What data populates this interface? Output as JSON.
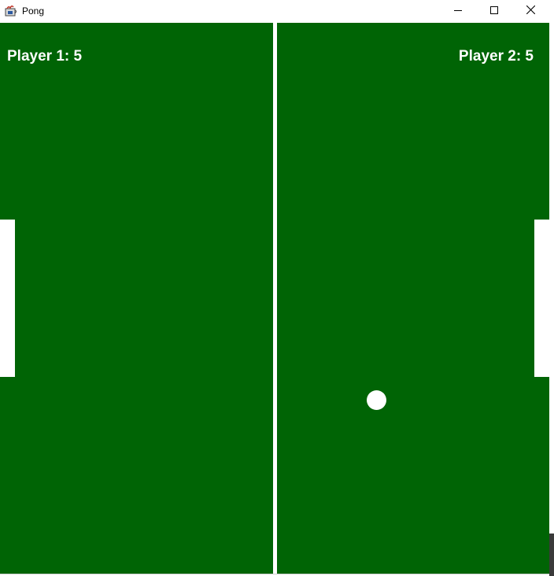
{
  "window": {
    "title": "Pong",
    "app_icon": "java-cup-icon",
    "controls": {
      "minimize_icon": "minimize-icon",
      "maximize_icon": "maximize-icon",
      "close_icon": "close-icon"
    }
  },
  "game": {
    "field_color": "#006405",
    "foreground_color": "#ffffff",
    "player1": {
      "score_text": "Player 1: 5",
      "score": 5
    },
    "player2": {
      "score_text": "Player 2: 5",
      "score": 5
    }
  }
}
